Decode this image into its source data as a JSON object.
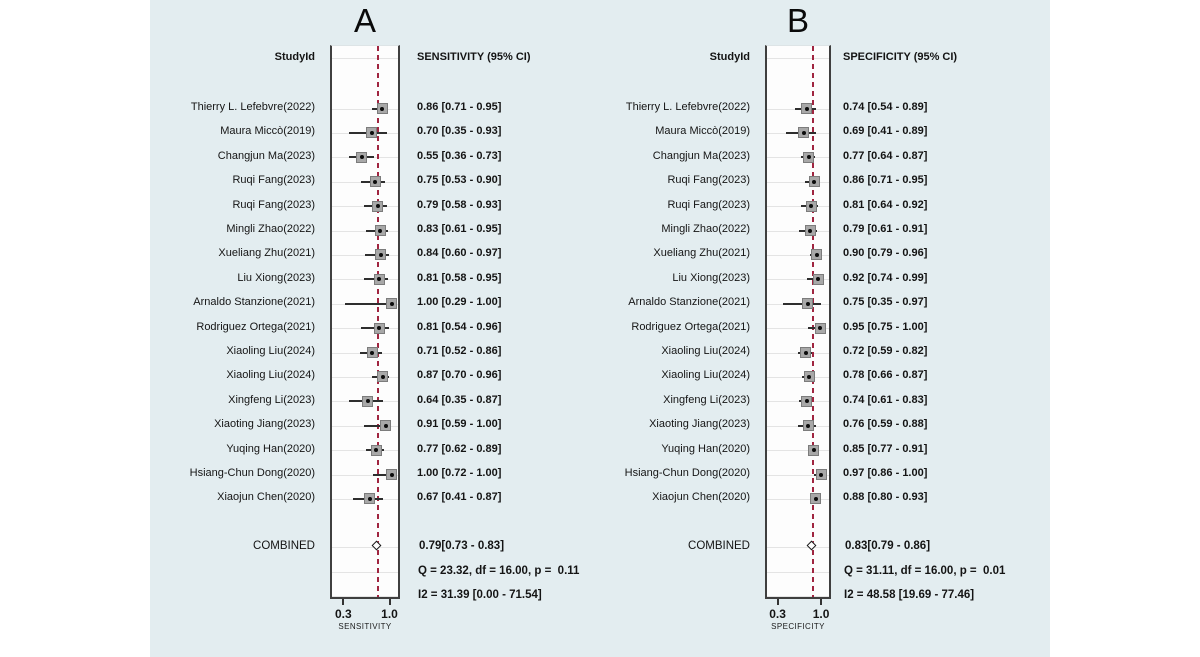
{
  "colors": {
    "figure_background": "#e3edf0",
    "plot_box_fill": "#fdfdfd",
    "reference_line_red": "#a02540",
    "marker_gray": "#a8a8a8",
    "ci_line": "#2e2e2e",
    "text": "#141414"
  },
  "chart_data": [
    {
      "type": "forest",
      "panel": "A",
      "title": "A",
      "study_header": "StudyId",
      "value_header": "SENSITIVITY (95% CI)",
      "combined_label": "COMBINED",
      "axis": {
        "ticks": [
          0.3,
          1.0
        ],
        "tick_labels": [
          "0.3",
          "1.0"
        ],
        "label": "SENSITIVITY"
      },
      "studies": [
        {
          "name": "Thierry L. Lefebvre(2022)",
          "est": 0.86,
          "lo": 0.71,
          "hi": 0.95,
          "ci_text": "0.86 [0.71 - 0.95]"
        },
        {
          "name": "Maura Miccò(2019)",
          "est": 0.7,
          "lo": 0.35,
          "hi": 0.93,
          "ci_text": "0.70 [0.35 - 0.93]"
        },
        {
          "name": "Changjun Ma(2023)",
          "est": 0.55,
          "lo": 0.36,
          "hi": 0.73,
          "ci_text": "0.55 [0.36 - 0.73]"
        },
        {
          "name": "Ruqi Fang(2023)",
          "est": 0.75,
          "lo": 0.53,
          "hi": 0.9,
          "ci_text": "0.75 [0.53 - 0.90]"
        },
        {
          "name": "Ruqi Fang(2023)",
          "est": 0.79,
          "lo": 0.58,
          "hi": 0.93,
          "ci_text": "0.79 [0.58 - 0.93]"
        },
        {
          "name": "Mingli Zhao(2022)",
          "est": 0.83,
          "lo": 0.61,
          "hi": 0.95,
          "ci_text": "0.83 [0.61 - 0.95]"
        },
        {
          "name": "Xueliang Zhu(2021)",
          "est": 0.84,
          "lo": 0.6,
          "hi": 0.97,
          "ci_text": "0.84 [0.60 - 0.97]"
        },
        {
          "name": "Liu Xiong(2023)",
          "est": 0.81,
          "lo": 0.58,
          "hi": 0.95,
          "ci_text": "0.81 [0.58 - 0.95]"
        },
        {
          "name": "Arnaldo Stanzione(2021)",
          "est": 1.0,
          "lo": 0.29,
          "hi": 1.0,
          "ci_text": "1.00 [0.29 - 1.00]"
        },
        {
          "name": "Rodriguez Ortega(2021)",
          "est": 0.81,
          "lo": 0.54,
          "hi": 0.96,
          "ci_text": "0.81 [0.54 - 0.96]"
        },
        {
          "name": "Xiaoling Liu(2024)",
          "est": 0.71,
          "lo": 0.52,
          "hi": 0.86,
          "ci_text": "0.71 [0.52 - 0.86]"
        },
        {
          "name": "Xiaoling Liu(2024)",
          "est": 0.87,
          "lo": 0.7,
          "hi": 0.96,
          "ci_text": "0.87 [0.70 - 0.96]"
        },
        {
          "name": "Xingfeng Li(2023)",
          "est": 0.64,
          "lo": 0.35,
          "hi": 0.87,
          "ci_text": "0.64 [0.35 - 0.87]"
        },
        {
          "name": "Xiaoting Jiang(2023)",
          "est": 0.91,
          "lo": 0.59,
          "hi": 1.0,
          "ci_text": "0.91 [0.59 - 1.00]"
        },
        {
          "name": "Yuqing Han(2020)",
          "est": 0.77,
          "lo": 0.62,
          "hi": 0.89,
          "ci_text": "0.77 [0.62 - 0.89]"
        },
        {
          "name": "Hsiang-Chun Dong(2020)",
          "est": 1.0,
          "lo": 0.72,
          "hi": 1.0,
          "ci_text": "1.00 [0.72 - 1.00]"
        },
        {
          "name": "Xiaojun Chen(2020)",
          "est": 0.67,
          "lo": 0.41,
          "hi": 0.87,
          "ci_text": "0.67 [0.41 - 0.87]"
        }
      ],
      "combined": {
        "est": 0.79,
        "lo": 0.73,
        "hi": 0.83,
        "text": "0.79[0.73 - 0.83]"
      },
      "heterogeneity": {
        "q_text": "Q = 23.32, df = 16.00, p =  0.11",
        "i2_text": "I2 = 31.39 [0.00 - 71.54]"
      }
    },
    {
      "type": "forest",
      "panel": "B",
      "title": "B",
      "study_header": "StudyId",
      "value_header": "SPECIFICITY (95% CI)",
      "combined_label": "COMBINED",
      "axis": {
        "ticks": [
          0.3,
          1.0
        ],
        "tick_labels": [
          "0.3",
          "1.0"
        ],
        "label": "SPECIFICITY"
      },
      "studies": [
        {
          "name": "Thierry L. Lefebvre(2022)",
          "est": 0.74,
          "lo": 0.54,
          "hi": 0.89,
          "ci_text": "0.74 [0.54 - 0.89]"
        },
        {
          "name": "Maura Miccò(2019)",
          "est": 0.69,
          "lo": 0.41,
          "hi": 0.89,
          "ci_text": "0.69 [0.41 - 0.89]"
        },
        {
          "name": "Changjun Ma(2023)",
          "est": 0.77,
          "lo": 0.64,
          "hi": 0.87,
          "ci_text": "0.77 [0.64 - 0.87]"
        },
        {
          "name": "Ruqi Fang(2023)",
          "est": 0.86,
          "lo": 0.71,
          "hi": 0.95,
          "ci_text": "0.86 [0.71 - 0.95]"
        },
        {
          "name": "Ruqi Fang(2023)",
          "est": 0.81,
          "lo": 0.64,
          "hi": 0.92,
          "ci_text": "0.81 [0.64 - 0.92]"
        },
        {
          "name": "Mingli Zhao(2022)",
          "est": 0.79,
          "lo": 0.61,
          "hi": 0.91,
          "ci_text": "0.79 [0.61 - 0.91]"
        },
        {
          "name": "Xueliang Zhu(2021)",
          "est": 0.9,
          "lo": 0.79,
          "hi": 0.96,
          "ci_text": "0.90 [0.79 - 0.96]"
        },
        {
          "name": "Liu Xiong(2023)",
          "est": 0.92,
          "lo": 0.74,
          "hi": 0.99,
          "ci_text": "0.92 [0.74 - 0.99]"
        },
        {
          "name": "Arnaldo Stanzione(2021)",
          "est": 0.75,
          "lo": 0.35,
          "hi": 0.97,
          "ci_text": "0.75 [0.35 - 0.97]"
        },
        {
          "name": "Rodriguez Ortega(2021)",
          "est": 0.95,
          "lo": 0.75,
          "hi": 1.0,
          "ci_text": "0.95 [0.75 - 1.00]"
        },
        {
          "name": "Xiaoling Liu(2024)",
          "est": 0.72,
          "lo": 0.59,
          "hi": 0.82,
          "ci_text": "0.72 [0.59 - 0.82]"
        },
        {
          "name": "Xiaoling Liu(2024)",
          "est": 0.78,
          "lo": 0.66,
          "hi": 0.87,
          "ci_text": "0.78 [0.66 - 0.87]"
        },
        {
          "name": "Xingfeng Li(2023)",
          "est": 0.74,
          "lo": 0.61,
          "hi": 0.83,
          "ci_text": "0.74 [0.61 - 0.83]"
        },
        {
          "name": "Xiaoting Jiang(2023)",
          "est": 0.76,
          "lo": 0.59,
          "hi": 0.88,
          "ci_text": "0.76 [0.59 - 0.88]"
        },
        {
          "name": "Yuqing Han(2020)",
          "est": 0.85,
          "lo": 0.77,
          "hi": 0.91,
          "ci_text": "0.85 [0.77 - 0.91]"
        },
        {
          "name": "Hsiang-Chun Dong(2020)",
          "est": 0.97,
          "lo": 0.86,
          "hi": 1.0,
          "ci_text": "0.97 [0.86 - 1.00]"
        },
        {
          "name": "Xiaojun Chen(2020)",
          "est": 0.88,
          "lo": 0.8,
          "hi": 0.93,
          "ci_text": "0.88 [0.80 - 0.93]"
        }
      ],
      "combined": {
        "est": 0.83,
        "lo": 0.79,
        "hi": 0.86,
        "text": "0.83[0.79 - 0.86]"
      },
      "heterogeneity": {
        "q_text": "Q = 31.11, df = 16.00, p =  0.01",
        "i2_text": "I2 = 48.58 [19.69 - 77.46]"
      }
    }
  ]
}
